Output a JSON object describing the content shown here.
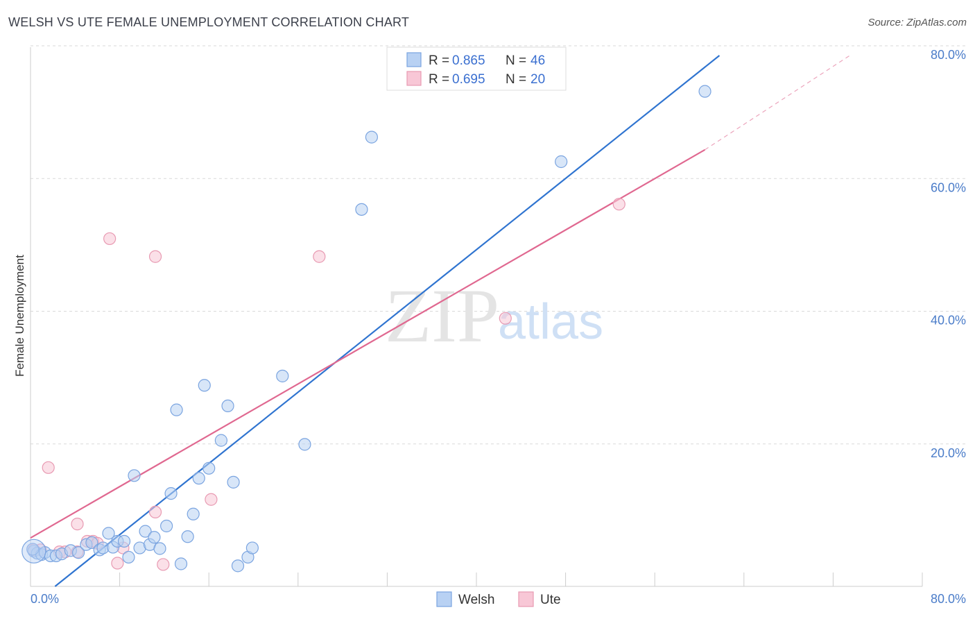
{
  "header": {
    "title": "WELSH VS UTE FEMALE UNEMPLOYMENT CORRELATION CHART",
    "source": "Source: ZipAtlas.com"
  },
  "watermark": {
    "zip": "ZIP",
    "atlas": "atlas"
  },
  "legend": {
    "r_label": "R =",
    "n_label": "N =",
    "entries": [
      {
        "r": "0.865",
        "n": "46"
      },
      {
        "r": "0.695",
        "n": "20"
      }
    ]
  },
  "colors": {
    "welsh_fill": "#b8d1f3",
    "welsh_stroke": "#7aa4e0",
    "welsh_line": "#2f74d0",
    "ute_fill": "#f8c7d6",
    "ute_stroke": "#e89ab2",
    "ute_line": "#e06890",
    "grid": "#d9d9d9",
    "tick_text": "#4a7cc9"
  },
  "chart_data": {
    "type": "scatter",
    "title": "WELSH VS UTE FEMALE UNEMPLOYMENT CORRELATION CHART",
    "xlabel": "",
    "ylabel": "Female Unemployment",
    "xlim": [
      0,
      80
    ],
    "ylim": [
      0,
      80
    ],
    "x_tick_labels": [
      "0.0%",
      "80.0%"
    ],
    "y_ticks": [
      20,
      40,
      60,
      80
    ],
    "y_tick_labels": [
      "20.0%",
      "40.0%",
      "60.0%",
      "80.0%"
    ],
    "grid": true,
    "legend_position": "top-center",
    "series": [
      {
        "name": "Welsh",
        "r": 0.865,
        "n": 46,
        "points": [
          [
            0.3,
            5.3
          ],
          [
            0.6,
            5.0
          ],
          [
            1.0,
            4.8
          ],
          [
            1.3,
            5.1
          ],
          [
            1.8,
            4.6
          ],
          [
            2.3,
            4.6
          ],
          [
            2.8,
            4.9
          ],
          [
            3.6,
            5.4
          ],
          [
            4.3,
            5.1
          ],
          [
            5.0,
            6.3
          ],
          [
            5.5,
            6.6
          ],
          [
            6.2,
            5.5
          ],
          [
            6.5,
            5.8
          ],
          [
            7.0,
            8.0
          ],
          [
            7.4,
            5.9
          ],
          [
            7.8,
            6.8
          ],
          [
            8.4,
            6.8
          ],
          [
            8.8,
            4.4
          ],
          [
            9.3,
            16.7
          ],
          [
            9.8,
            5.8
          ],
          [
            10.3,
            8.3
          ],
          [
            10.7,
            6.3
          ],
          [
            11.1,
            7.4
          ],
          [
            11.6,
            5.7
          ],
          [
            12.2,
            9.1
          ],
          [
            12.6,
            14.0
          ],
          [
            13.1,
            26.6
          ],
          [
            13.5,
            3.4
          ],
          [
            14.1,
            7.5
          ],
          [
            14.6,
            10.9
          ],
          [
            15.1,
            16.3
          ],
          [
            15.6,
            30.3
          ],
          [
            16.0,
            17.8
          ],
          [
            17.1,
            22.0
          ],
          [
            17.7,
            27.2
          ],
          [
            18.2,
            15.7
          ],
          [
            18.6,
            3.1
          ],
          [
            19.5,
            4.4
          ],
          [
            19.9,
            5.8
          ],
          [
            22.6,
            31.7
          ],
          [
            24.6,
            21.4
          ],
          [
            29.7,
            56.8
          ],
          [
            30.6,
            67.7
          ],
          [
            47.6,
            64.0
          ],
          [
            60.5,
            74.6
          ],
          [
            0.2,
            5.6
          ]
        ]
      },
      {
        "name": "Ute",
        "r": 0.695,
        "n": 20,
        "points": [
          [
            0.3,
            5.5
          ],
          [
            0.9,
            5.5
          ],
          [
            1.6,
            17.9
          ],
          [
            2.6,
            5.2
          ],
          [
            3.1,
            5.2
          ],
          [
            4.2,
            5.2
          ],
          [
            4.2,
            9.4
          ],
          [
            5.1,
            6.8
          ],
          [
            5.6,
            6.8
          ],
          [
            6.0,
            6.5
          ],
          [
            7.1,
            52.4
          ],
          [
            7.8,
            3.5
          ],
          [
            8.3,
            5.8
          ],
          [
            11.2,
            49.7
          ],
          [
            11.2,
            11.2
          ],
          [
            11.9,
            3.3
          ],
          [
            16.2,
            13.1
          ],
          [
            25.9,
            49.7
          ],
          [
            42.6,
            40.4
          ],
          [
            52.8,
            57.6
          ]
        ]
      }
    ],
    "trendlines": [
      {
        "series": "Welsh",
        "from": [
          2.2,
          0
        ],
        "to": [
          61.8,
          80
        ]
      },
      {
        "series": "Ute",
        "from": [
          0,
          7.3
        ],
        "to": [
          60.5,
          65.8
        ],
        "dashed_to": [
          73.5,
          80
        ]
      }
    ]
  }
}
